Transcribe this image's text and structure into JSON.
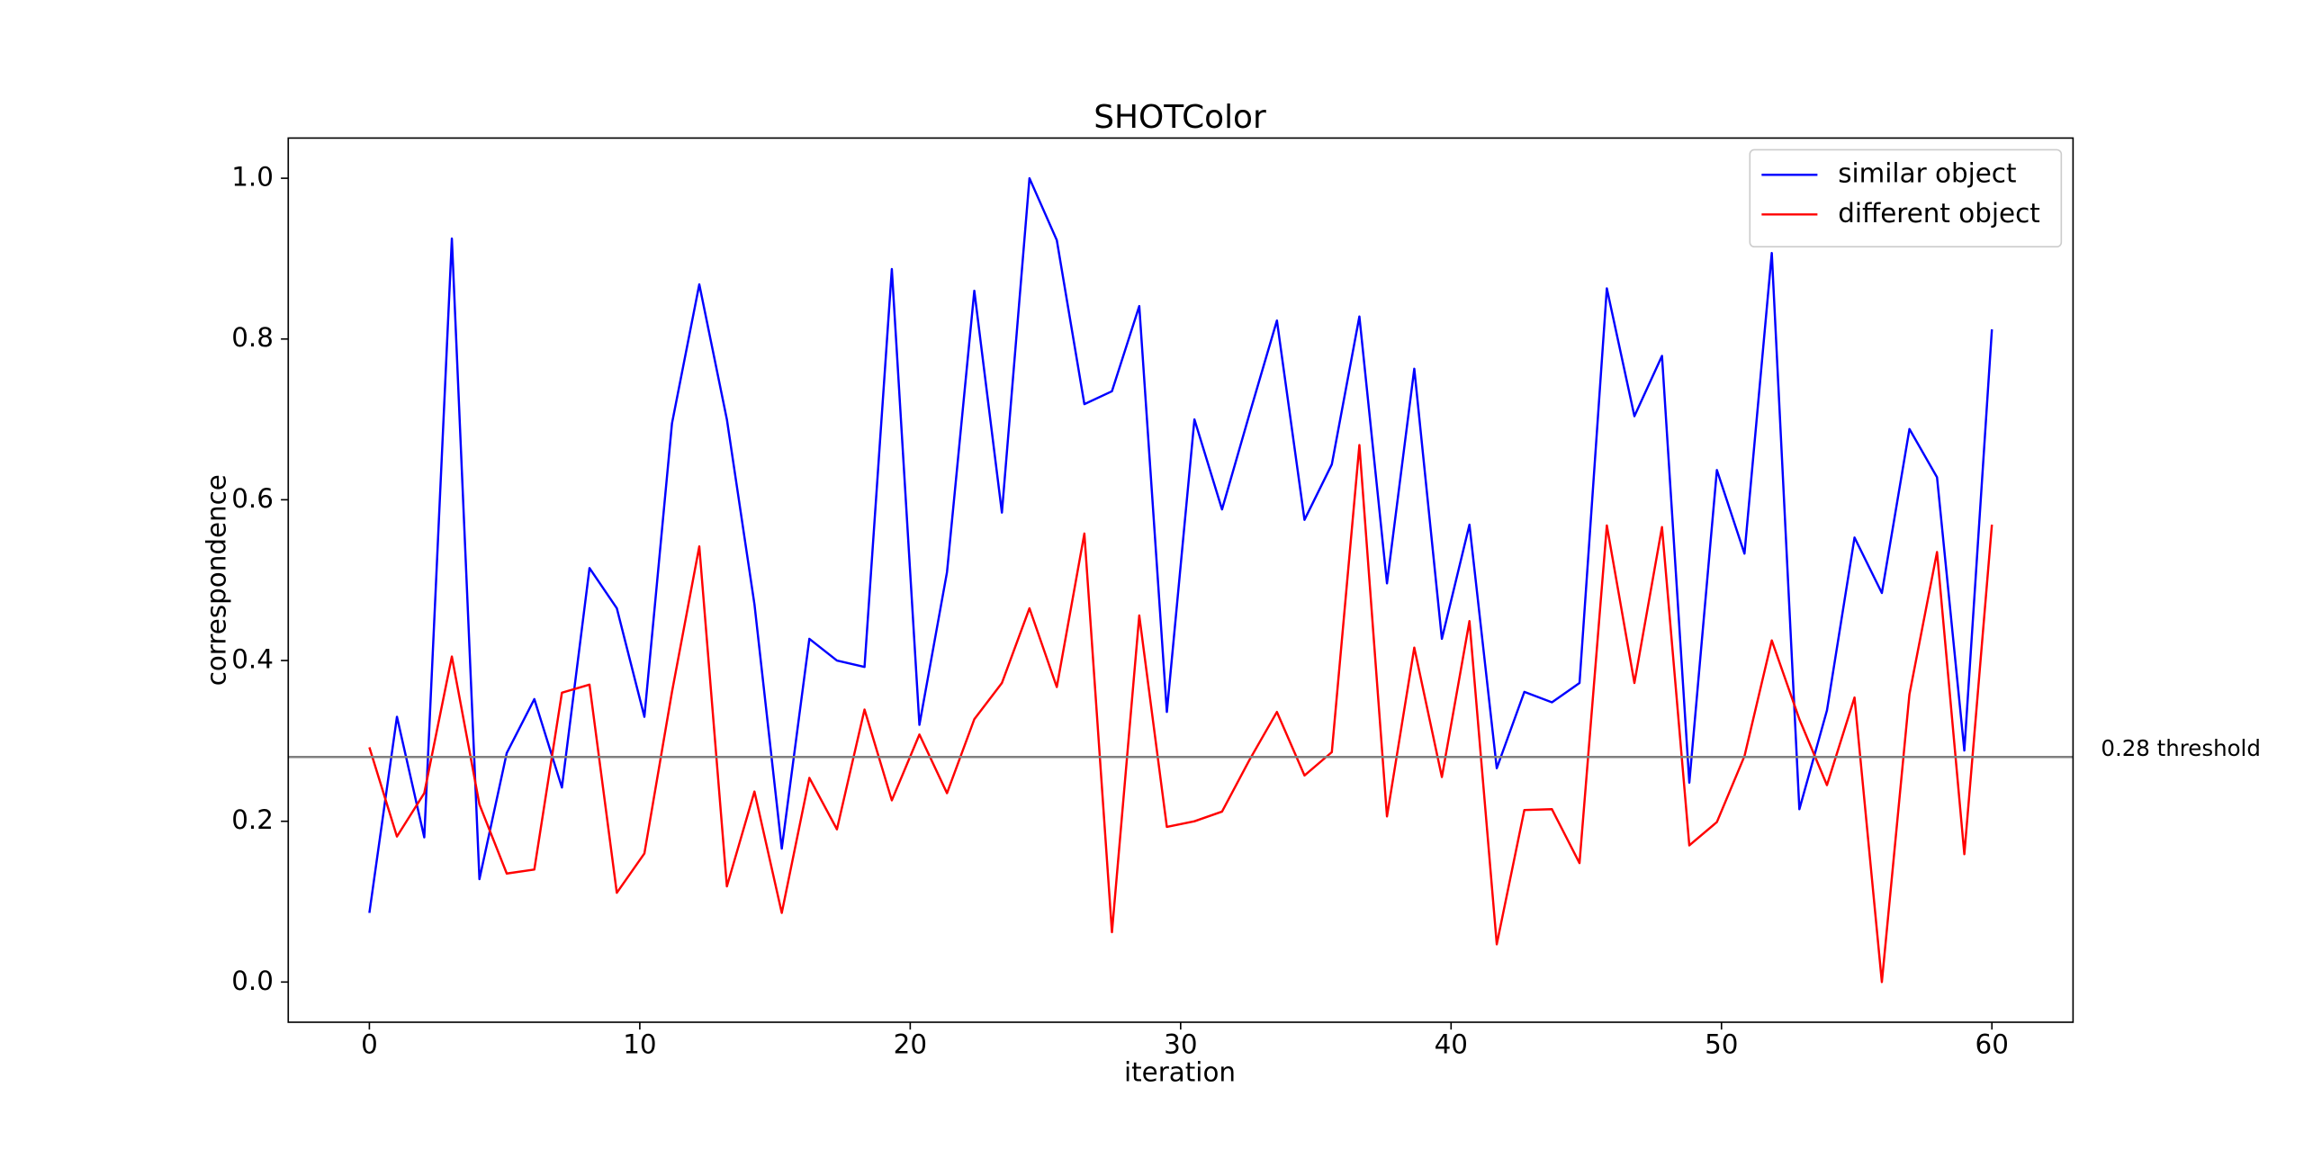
{
  "chart_data": {
    "type": "line",
    "title": "SHOTColor",
    "xlabel": "iteration",
    "ylabel": "correspondence",
    "x": [
      0,
      1.02,
      2.03,
      3.05,
      4.07,
      5.08,
      6.1,
      7.12,
      8.14,
      9.15,
      10.17,
      11.19,
      12.2,
      13.22,
      14.24,
      15.25,
      16.27,
      17.29,
      18.31,
      19.32,
      20.34,
      21.36,
      22.37,
      23.39,
      24.41,
      25.42,
      26.44,
      27.46,
      28.47,
      29.49,
      30.51,
      31.53,
      32.54,
      33.56,
      34.58,
      35.59,
      36.61,
      37.63,
      38.64,
      39.66,
      40.68,
      41.69,
      42.71,
      43.73,
      44.75,
      45.76,
      46.78,
      47.8,
      48.81,
      49.83,
      50.85,
      51.86,
      52.88,
      53.9,
      54.92,
      55.93,
      56.95,
      57.97,
      58.98,
      60
    ],
    "series": [
      {
        "name": "similar object",
        "color": "#0000ff",
        "values": [
          0.086,
          0.33,
          0.18,
          0.925,
          0.128,
          0.285,
          0.352,
          0.242,
          0.515,
          0.465,
          0.33,
          0.695,
          0.868,
          0.7,
          0.47,
          0.166,
          0.427,
          0.4,
          0.392,
          0.887,
          0.32,
          0.51,
          0.86,
          0.584,
          1.0,
          0.923,
          0.719,
          0.735,
          0.841,
          0.336,
          0.7,
          0.588,
          0.706,
          0.823,
          0.575,
          0.644,
          0.828,
          0.496,
          0.763,
          0.427,
          0.569,
          0.266,
          0.361,
          0.348,
          0.372,
          0.863,
          0.704,
          0.779,
          0.248,
          0.637,
          0.533,
          0.907,
          0.215,
          0.338,
          0.553,
          0.484,
          0.688,
          0.628,
          0.288,
          0.812
        ]
      },
      {
        "name": "different object",
        "color": "#ff0000",
        "values": [
          0.292,
          0.181,
          0.235,
          0.405,
          0.221,
          0.135,
          0.14,
          0.36,
          0.37,
          0.111,
          0.16,
          0.361,
          0.542,
          0.119,
          0.237,
          0.086,
          0.254,
          0.19,
          0.339,
          0.226,
          0.308,
          0.235,
          0.327,
          0.372,
          0.465,
          0.367,
          0.558,
          0.062,
          0.456,
          0.193,
          0.2,
          0.212,
          0.276,
          0.336,
          0.257,
          0.286,
          0.668,
          0.206,
          0.416,
          0.255,
          0.449,
          0.047,
          0.214,
          0.215,
          0.148,
          0.568,
          0.372,
          0.566,
          0.17,
          0.199,
          0.281,
          0.425,
          0.327,
          0.245,
          0.354,
          0.0,
          0.358,
          0.535,
          0.159,
          0.569
        ]
      }
    ],
    "threshold": {
      "value": 0.28,
      "label": "0.28 threshold",
      "color": "#808080"
    },
    "xlim": [
      -3,
      63
    ],
    "ylim": [
      -0.05,
      1.05
    ],
    "xticks": [
      0,
      10,
      20,
      30,
      40,
      50,
      60
    ],
    "yticks": [
      {
        "value": 0,
        "label": "0.0"
      },
      0.2,
      0.4,
      0.6,
      0.8,
      {
        "value": 1,
        "label": "1.0"
      }
    ],
    "legend": "upper right",
    "grid": false
  }
}
